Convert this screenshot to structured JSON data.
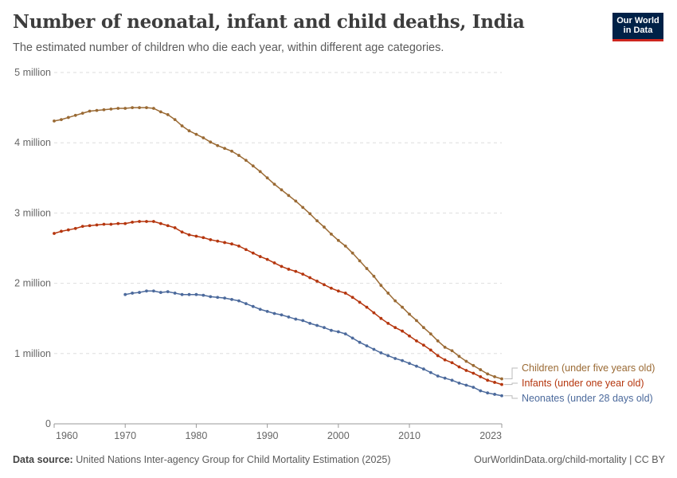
{
  "header": {
    "title": "Number of neonatal, infant and child deaths, India",
    "subtitle": "The estimated number of children who die each year, within different age categories.",
    "logo_text": "Our World in Data"
  },
  "footer": {
    "source_label": "Data source:",
    "source_text": "United Nations Inter-agency Group for Child Mortality Estimation (2025)",
    "link_text": "OurWorldinData.org/child-mortality | CC BY"
  },
  "chart_data": {
    "type": "line",
    "title": "Number of neonatal, infant and child deaths, India",
    "xlim": [
      1960,
      2023
    ],
    "ylim": [
      0,
      5000000
    ],
    "x_ticks": [
      1960,
      1970,
      1980,
      1990,
      2000,
      2010,
      2023
    ],
    "x_tick_labels": [
      "1960",
      "1970",
      "1980",
      "1990",
      "2000",
      "2010",
      "2023"
    ],
    "y_ticks": [
      0,
      1000000,
      2000000,
      3000000,
      4000000,
      5000000
    ],
    "y_tick_labels": [
      "0",
      "1 million",
      "2 million",
      "3 million",
      "4 million",
      "5 million"
    ],
    "grid": "horizontal dashed",
    "legend": "right (end-of-line labels)",
    "series": [
      {
        "name": "Children (under five years old)",
        "color": "#9a6a34",
        "start_year": 1960,
        "values_million": [
          4.31,
          4.33,
          4.36,
          4.39,
          4.42,
          4.45,
          4.46,
          4.47,
          4.48,
          4.49,
          4.49,
          4.5,
          4.5,
          4.5,
          4.49,
          4.44,
          4.4,
          4.33,
          4.24,
          4.17,
          4.12,
          4.07,
          4.01,
          3.96,
          3.92,
          3.88,
          3.82,
          3.75,
          3.67,
          3.59,
          3.5,
          3.41,
          3.33,
          3.25,
          3.17,
          3.08,
          2.99,
          2.89,
          2.8,
          2.7,
          2.61,
          2.53,
          2.43,
          2.32,
          2.21,
          2.1,
          1.97,
          1.86,
          1.75,
          1.66,
          1.56,
          1.47,
          1.37,
          1.28,
          1.18,
          1.09,
          1.04,
          0.96,
          0.89,
          0.83,
          0.77,
          0.71,
          0.67,
          0.64
        ]
      },
      {
        "name": "Infants (under one year old)",
        "color": "#b5360e",
        "start_year": 1960,
        "values_million": [
          2.71,
          2.74,
          2.76,
          2.78,
          2.81,
          2.82,
          2.83,
          2.84,
          2.84,
          2.85,
          2.85,
          2.87,
          2.88,
          2.88,
          2.88,
          2.85,
          2.82,
          2.79,
          2.73,
          2.69,
          2.67,
          2.65,
          2.62,
          2.6,
          2.58,
          2.56,
          2.53,
          2.48,
          2.43,
          2.38,
          2.34,
          2.29,
          2.24,
          2.2,
          2.17,
          2.13,
          2.08,
          2.03,
          1.98,
          1.93,
          1.89,
          1.86,
          1.8,
          1.73,
          1.66,
          1.58,
          1.5,
          1.43,
          1.37,
          1.32,
          1.25,
          1.18,
          1.12,
          1.05,
          0.97,
          0.91,
          0.87,
          0.81,
          0.76,
          0.72,
          0.67,
          0.62,
          0.59,
          0.56
        ]
      },
      {
        "name": "Neonates (under 28 days old)",
        "color": "#4c6a9c",
        "start_year": 1970,
        "values_million": [
          1.84,
          1.86,
          1.87,
          1.89,
          1.89,
          1.87,
          1.88,
          1.86,
          1.84,
          1.84,
          1.84,
          1.83,
          1.81,
          1.8,
          1.79,
          1.77,
          1.75,
          1.71,
          1.67,
          1.63,
          1.6,
          1.57,
          1.55,
          1.52,
          1.49,
          1.47,
          1.43,
          1.4,
          1.37,
          1.33,
          1.31,
          1.28,
          1.22,
          1.16,
          1.11,
          1.06,
          1.01,
          0.97,
          0.93,
          0.9,
          0.86,
          0.82,
          0.78,
          0.73,
          0.68,
          0.65,
          0.62,
          0.58,
          0.55,
          0.52,
          0.47,
          0.44,
          0.42,
          0.4
        ]
      }
    ]
  }
}
